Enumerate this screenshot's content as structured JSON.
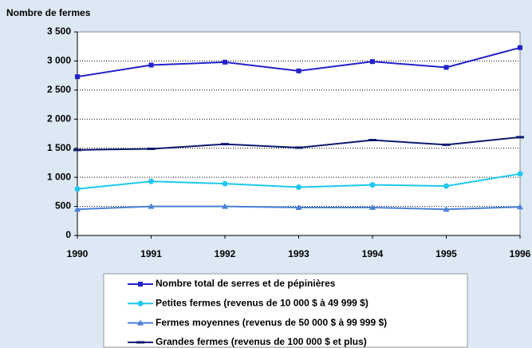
{
  "chart_data": {
    "type": "line",
    "y_label": "Nombre de fermes",
    "categories": [
      "1990",
      "1991",
      "1992",
      "1993",
      "1994",
      "1995",
      "1996"
    ],
    "series": [
      {
        "name": "Nombre total de serres et de pépinières",
        "color": "#2222cc",
        "marker": "square",
        "values": [
          2730,
          2930,
          2980,
          2830,
          2990,
          2890,
          3230
        ]
      },
      {
        "name": "Petites fermes (revenus de 10 000 $ à 49 999 $)",
        "color": "#1ec8f0",
        "marker": "circle",
        "values": [
          800,
          930,
          890,
          830,
          870,
          850,
          1060
        ]
      },
      {
        "name": "Fermes moyennes (revenus de 50 000 $ à 99 999 $)",
        "color": "#4a80d8",
        "marker": "triangle",
        "values": [
          450,
          500,
          500,
          480,
          480,
          450,
          490
        ]
      },
      {
        "name": "Grandes fermes (revenus de 100 000 $ et plus)",
        "color": "#0c1a70",
        "marker": "dash",
        "values": [
          1470,
          1490,
          1570,
          1510,
          1640,
          1560,
          1690
        ]
      }
    ],
    "ylim": [
      0,
      3500
    ],
    "yticks": [
      0,
      500,
      {
        "value": 1000,
        "label": "1 000"
      },
      {
        "value": 1500,
        "label": "1 500"
      },
      {
        "value": 2000,
        "label": "2 000"
      },
      {
        "value": 2500,
        "label": "2 500"
      },
      {
        "value": 3000,
        "label": "3 000"
      },
      {
        "value": 3500,
        "label": "3 500"
      }
    ],
    "grid": true,
    "legend": "bottom"
  }
}
